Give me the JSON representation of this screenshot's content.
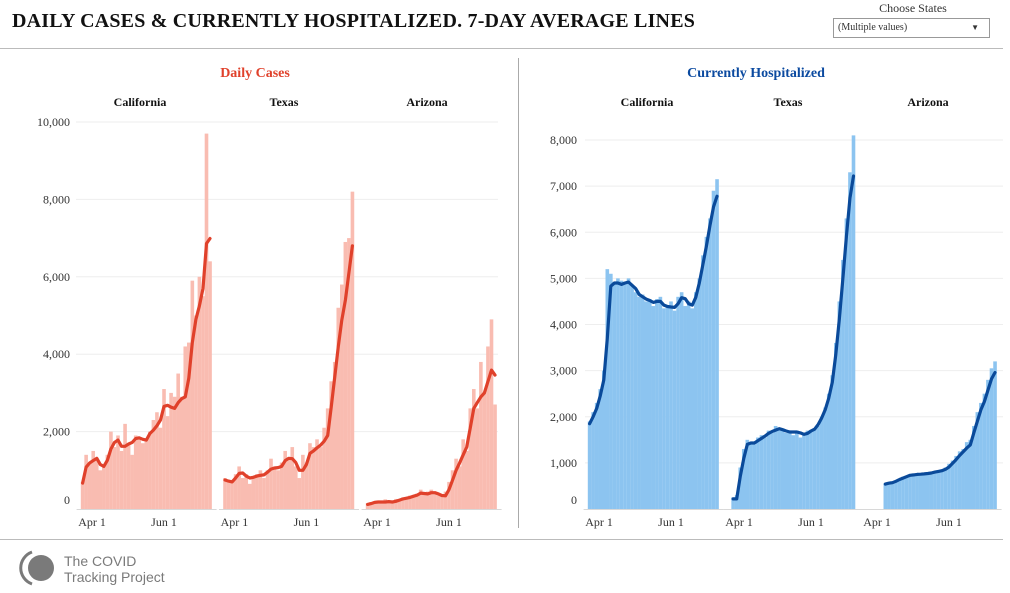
{
  "header": {
    "title": "DAILY CASES & CURRENTLY HOSPITALIZED. 7-DAY AVERAGE LINES"
  },
  "filter": {
    "label": "Choose States",
    "value": "(Multiple values)",
    "icon": "dropdown-triangle-icon"
  },
  "logo": {
    "line1": "The COVID",
    "line2": "Tracking Project"
  },
  "chart_data": [
    {
      "type": "bar",
      "title": "Daily Cases",
      "bar_color": "#f9bcb1",
      "line_color": "#e0412b",
      "ylim": [
        0,
        10000
      ],
      "yticks": [
        0,
        2000,
        4000,
        6000,
        8000,
        10000
      ],
      "ytick_labels": [
        "0",
        "2,000",
        "4,000",
        "6,000",
        "8,000",
        "10,000"
      ],
      "xticks": [
        {
          "label": "Apr 1",
          "date": "2020-04-01"
        },
        {
          "label": "Jun 1",
          "date": "2020-06-01"
        }
      ],
      "grid": true,
      "dates": [
        "2020-03-24",
        "2020-03-27",
        "2020-03-30",
        "2020-04-02",
        "2020-04-05",
        "2020-04-08",
        "2020-04-11",
        "2020-04-14",
        "2020-04-17",
        "2020-04-20",
        "2020-04-23",
        "2020-04-26",
        "2020-04-29",
        "2020-05-02",
        "2020-05-05",
        "2020-05-08",
        "2020-05-11",
        "2020-05-14",
        "2020-05-17",
        "2020-05-20",
        "2020-05-23",
        "2020-05-26",
        "2020-05-29",
        "2020-06-01",
        "2020-06-04",
        "2020-06-07",
        "2020-06-10",
        "2020-06-13",
        "2020-06-16",
        "2020-06-19",
        "2020-06-22",
        "2020-06-25",
        "2020-06-28",
        "2020-07-01",
        "2020-07-04",
        "2020-07-07",
        "2020-07-10"
      ],
      "panels": [
        {
          "state": "California",
          "daily": [
            700,
            1400,
            1200,
            1500,
            1300,
            1000,
            1100,
            1400,
            2000,
            1600,
            1900,
            1500,
            2200,
            1700,
            1400,
            1900,
            1800,
            1700,
            1800,
            2000,
            2300,
            2500,
            2100,
            3100,
            2400,
            3000,
            2900,
            3500,
            2900,
            4200,
            4300,
            5900,
            5000,
            6000,
            5500,
            9700,
            6400
          ],
          "avg7": [
            670,
            1080,
            1190,
            1250,
            1310,
            1150,
            1100,
            1260,
            1550,
            1720,
            1780,
            1620,
            1620,
            1680,
            1720,
            1820,
            1840,
            1800,
            1780,
            1950,
            2040,
            2150,
            2300,
            2650,
            2680,
            2630,
            2600,
            2750,
            2850,
            2900,
            3380,
            4300,
            4900,
            5250,
            5700,
            6860,
            6990
          ]
        },
        {
          "state": "Texas",
          "daily": [
            800,
            700,
            750,
            900,
            1100,
            800,
            900,
            650,
            850,
            900,
            1000,
            800,
            1000,
            1300,
            1100,
            1000,
            1200,
            1500,
            1300,
            1600,
            1100,
            800,
            1400,
            1200,
            1700,
            1600,
            1800,
            1600,
            2100,
            2600,
            3300,
            3800,
            5200,
            5800,
            6900,
            7000,
            8200
          ],
          "avg7": [
            750,
            720,
            700,
            800,
            920,
            930,
            850,
            800,
            820,
            850,
            870,
            880,
            950,
            1030,
            1060,
            1070,
            1100,
            1250,
            1310,
            1300,
            1200,
            1000,
            1000,
            1150,
            1440,
            1500,
            1580,
            1650,
            1750,
            1900,
            2630,
            3400,
            4200,
            4880,
            5400,
            6100,
            6800
          ]
        },
        {
          "state": "Arizona",
          "daily": [
            150,
            180,
            200,
            220,
            150,
            250,
            200,
            180,
            260,
            250,
            300,
            280,
            350,
            320,
            400,
            500,
            380,
            450,
            500,
            400,
            420,
            380,
            450,
            700,
            1000,
            1300,
            1100,
            1800,
            1500,
            2600,
            3100,
            2600,
            3800,
            3000,
            4200,
            4900,
            2700
          ],
          "avg7": [
            120,
            140,
            170,
            180,
            180,
            180,
            190,
            180,
            200,
            230,
            260,
            280,
            300,
            330,
            360,
            410,
            400,
            390,
            420,
            420,
            390,
            350,
            340,
            500,
            750,
            1000,
            1190,
            1400,
            1600,
            2100,
            2600,
            2750,
            2900,
            3000,
            3300,
            3590,
            3460
          ]
        }
      ]
    },
    {
      "type": "bar",
      "title": "Currently Hospitalized",
      "bar_color": "#8cc4f0",
      "line_color": "#0a4a9a",
      "ylim": [
        0,
        8000
      ],
      "yticks": [
        0,
        1000,
        2000,
        3000,
        4000,
        5000,
        6000,
        7000,
        8000
      ],
      "ytick_labels": [
        "0",
        "1,000",
        "2,000",
        "3,000",
        "4,000",
        "5,000",
        "6,000",
        "7,000",
        "8,000"
      ],
      "xticks": [
        {
          "label": "Apr 1",
          "date": "2020-04-01"
        },
        {
          "label": "Jun 1",
          "date": "2020-06-01"
        }
      ],
      "grid": true,
      "dates": [
        "2020-03-24",
        "2020-03-27",
        "2020-03-30",
        "2020-04-02",
        "2020-04-05",
        "2020-04-08",
        "2020-04-11",
        "2020-04-14",
        "2020-04-17",
        "2020-04-20",
        "2020-04-23",
        "2020-04-26",
        "2020-04-29",
        "2020-05-02",
        "2020-05-05",
        "2020-05-08",
        "2020-05-11",
        "2020-05-14",
        "2020-05-17",
        "2020-05-20",
        "2020-05-23",
        "2020-05-26",
        "2020-05-29",
        "2020-06-01",
        "2020-06-04",
        "2020-06-07",
        "2020-06-10",
        "2020-06-13",
        "2020-06-16",
        "2020-06-19",
        "2020-06-22",
        "2020-06-25",
        "2020-06-28",
        "2020-07-01",
        "2020-07-04",
        "2020-07-07",
        "2020-07-10"
      ],
      "panels": [
        {
          "state": "California",
          "daily": [
            1900,
            2100,
            2300,
            2600,
            3000,
            5200,
            5100,
            4900,
            5000,
            4950,
            4900,
            5000,
            4850,
            4700,
            4600,
            4650,
            4500,
            4550,
            4400,
            4550,
            4600,
            4350,
            4400,
            4500,
            4300,
            4600,
            4700,
            4400,
            4500,
            4350,
            4700,
            5000,
            5500,
            5900,
            6300,
            6900,
            7150
          ],
          "avg7": [
            1850,
            2000,
            2180,
            2450,
            2800,
            3700,
            4830,
            4900,
            4900,
            4870,
            4900,
            4920,
            4850,
            4780,
            4650,
            4600,
            4550,
            4520,
            4480,
            4500,
            4500,
            4420,
            4390,
            4380,
            4370,
            4450,
            4580,
            4560,
            4450,
            4420,
            4590,
            4900,
            5300,
            5700,
            6150,
            6550,
            6780
          ]
        },
        {
          "state": "Texas",
          "daily": [
            null,
            250,
            300,
            900,
            1300,
            1500,
            1450,
            1400,
            1550,
            1600,
            1550,
            1700,
            1650,
            1800,
            1700,
            1750,
            1650,
            1700,
            1600,
            1700,
            1550,
            1650,
            1700,
            1700,
            1750,
            1800,
            2000,
            2200,
            2500,
            2900,
            3600,
            4500,
            5400,
            6300,
            7300,
            8100,
            null
          ],
          "avg7": [
            null,
            220,
            220,
            700,
            1100,
            1400,
            1430,
            1430,
            1480,
            1530,
            1580,
            1640,
            1680,
            1710,
            1740,
            1720,
            1690,
            1670,
            1670,
            1670,
            1650,
            1620,
            1640,
            1690,
            1730,
            1830,
            1970,
            2150,
            2400,
            2750,
            3350,
            4110,
            5000,
            5910,
            6750,
            7220,
            null
          ]
        },
        {
          "state": "Arizona",
          "daily": [
            null,
            null,
            null,
            null,
            null,
            550,
            580,
            600,
            620,
            660,
            700,
            720,
            740,
            760,
            760,
            770,
            770,
            790,
            800,
            810,
            830,
            850,
            900,
            980,
            1050,
            1150,
            1250,
            1300,
            1450,
            1500,
            1800,
            2100,
            2300,
            2500,
            2800,
            3050,
            3200
          ],
          "avg7": [
            null,
            null,
            null,
            null,
            null,
            540,
            560,
            570,
            600,
            640,
            670,
            700,
            730,
            740,
            750,
            755,
            760,
            770,
            780,
            800,
            815,
            830,
            860,
            910,
            990,
            1070,
            1160,
            1240,
            1320,
            1390,
            1650,
            1900,
            2150,
            2330,
            2580,
            2820,
            2960
          ]
        }
      ]
    }
  ]
}
